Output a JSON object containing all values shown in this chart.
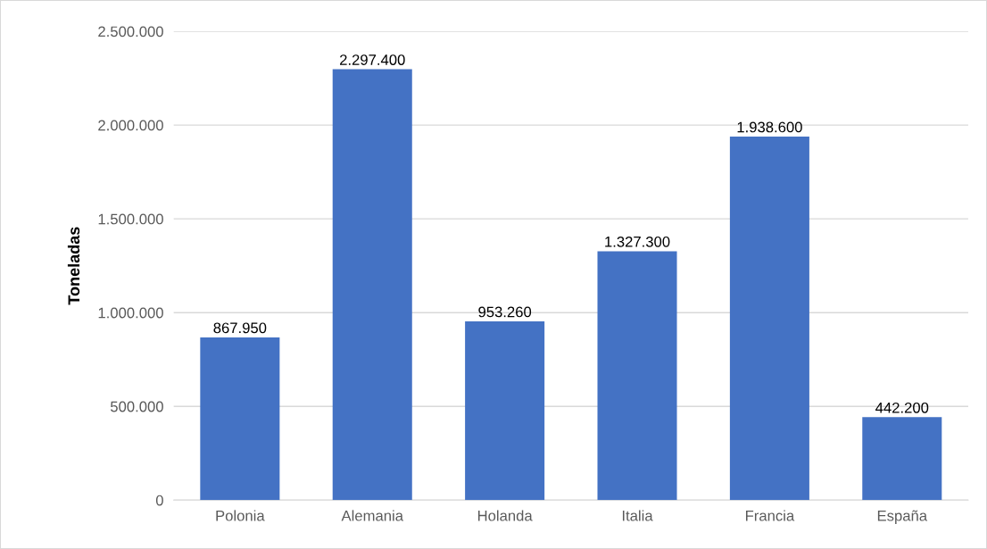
{
  "chart_data": {
    "type": "bar",
    "ylabel": "Toneladas",
    "categories": [
      "Polonia",
      "Alemania",
      "Holanda",
      "Italia",
      "Francia",
      "España"
    ],
    "values": [
      867950,
      2297400,
      953260,
      1327300,
      1938600,
      442200
    ],
    "value_labels": [
      "867.950",
      "2.297.400",
      "953.260",
      "1.327.300",
      "1.938.600",
      "442.200"
    ],
    "color": "#4472c4",
    "ylim": [
      0,
      2500000
    ],
    "yticks": [
      0,
      {
        "value": 500000,
        "label": "500.000"
      },
      {
        "value": 1000000,
        "label": "1.000.000"
      },
      {
        "value": 1500000,
        "label": "1.500.000"
      },
      {
        "value": 2000000,
        "label": "2.000.000"
      },
      {
        "value": 2500000,
        "label": "2.500.000"
      }
    ],
    "grid": "y"
  }
}
